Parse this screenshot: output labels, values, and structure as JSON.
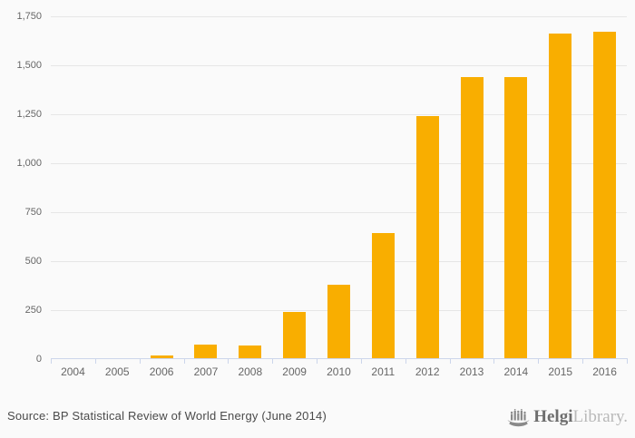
{
  "chart_data": {
    "type": "bar",
    "title": "",
    "xlabel": "",
    "ylabel": "",
    "categories": [
      "2004",
      "2005",
      "2006",
      "2007",
      "2008",
      "2009",
      "2010",
      "2011",
      "2012",
      "2013",
      "2014",
      "2015",
      "2016"
    ],
    "values": [
      0,
      0,
      20,
      75,
      70,
      240,
      380,
      645,
      1240,
      1440,
      1440,
      1660,
      1670
    ],
    "ylim": [
      0,
      1750
    ],
    "ytick_interval": 250,
    "yticks": [
      0,
      250,
      500,
      750,
      1000,
      1250,
      1500,
      1750
    ],
    "ytick_labels": [
      "0",
      "250",
      "500",
      "750",
      "1,000",
      "1,250",
      "1,500",
      "1,750"
    ],
    "grid": true,
    "legend": "none",
    "bar_color": "#F9AE00"
  },
  "footer": {
    "source_text": "Source: BP Statistical Review of World Energy (June 2014)",
    "logo": {
      "icon": "helgi-ship-icon",
      "brand_bold": "Helgi",
      "brand_light": "Library."
    }
  },
  "colors": {
    "background": "#FAFAFA",
    "bar": "#F9AE00",
    "gridline": "#E6E6E6",
    "axis_line": "#CCD6EB",
    "tick_label": "#666666",
    "source_text": "#4A4A4A",
    "logo_bold": "#6E6E6E",
    "logo_light": "#B9B9B9"
  }
}
